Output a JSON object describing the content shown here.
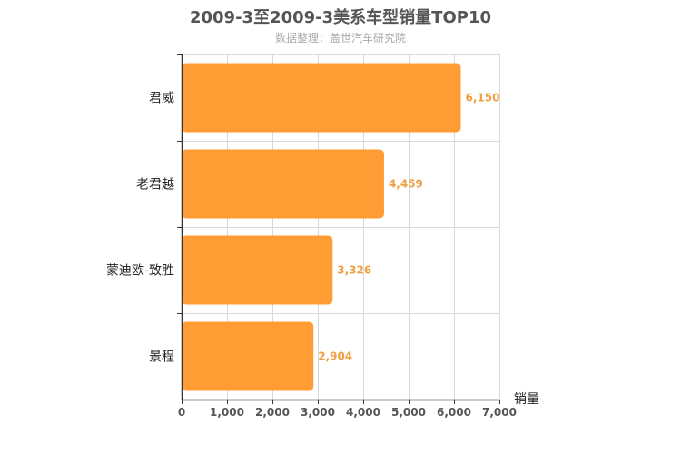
{
  "chart_data": {
    "type": "bar",
    "orientation": "horizontal",
    "title": "2009-3至2009-3美系车型销量TOP10",
    "subtitle": "数据整理：盖世汽车研究院",
    "xlabel": "销量",
    "ylabel": "",
    "categories": [
      "君威",
      "老君越",
      "蒙迪欧-致胜",
      "景程"
    ],
    "values": [
      6150,
      4459,
      3326,
      2904
    ],
    "value_labels": [
      "6,150",
      "4,459",
      "3,326",
      "2,904"
    ],
    "xlim": [
      0,
      7000
    ],
    "x_ticks": [
      0,
      1000,
      2000,
      3000,
      4000,
      5000,
      6000,
      7000
    ],
    "x_tick_labels": [
      "0",
      "1,000",
      "2,000",
      "3,000",
      "4,000",
      "5,000",
      "6,000",
      "7,000"
    ],
    "grid": true,
    "legend": "none",
    "colors": {
      "bar": "#ff9c33",
      "value_label": "#f0a044",
      "grid": "#d8d8d8",
      "axis": "#333333",
      "title": "#555555",
      "subtitle": "#aaaaaa"
    }
  }
}
